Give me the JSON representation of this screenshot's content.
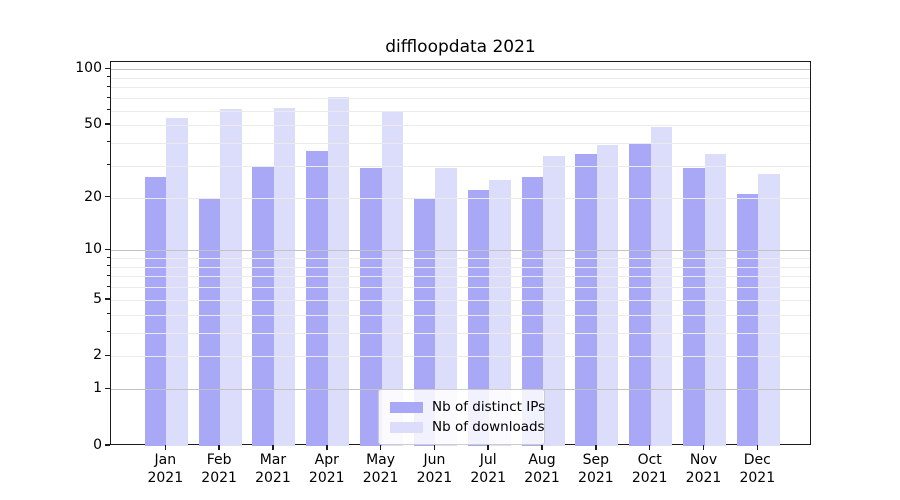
{
  "chart_data": {
    "type": "bar",
    "title": "diffloopdata 2021",
    "categories": [
      "Jan 2021",
      "Feb 2021",
      "Mar 2021",
      "Apr 2021",
      "May 2021",
      "Jun 2021",
      "Jul 2021",
      "Aug 2021",
      "Sep 2021",
      "Oct 2021",
      "Nov 2021",
      "Dec 2021"
    ],
    "series": [
      {
        "key": "distinct-ips",
        "name": "Nb of distinct IPs",
        "color": "#a8a8f6",
        "values": [
          26,
          20,
          30,
          36,
          29,
          20,
          22,
          26,
          35,
          40,
          29,
          21
        ]
      },
      {
        "key": "downloads",
        "name": "Nb of downloads",
        "color": "#dcdcfb",
        "values": [
          55,
          61,
          62,
          71,
          59,
          29,
          25,
          34,
          39,
          49,
          35,
          27
        ]
      }
    ],
    "xlabel": "",
    "ylabel": "",
    "y_scale": "log1p",
    "ylim": [
      0,
      109
    ],
    "y_tick_values": [
      0,
      1,
      2,
      5,
      10,
      20,
      50,
      100
    ],
    "y_tick_labels": [
      "0",
      "1",
      "2",
      "5",
      "10",
      "20",
      "50",
      "100"
    ],
    "major_grid_values": [
      1,
      10,
      100
    ],
    "minor_grid_values": [
      2,
      3,
      4,
      5,
      6,
      7,
      8,
      9,
      20,
      30,
      40,
      50,
      60,
      70,
      80,
      90
    ],
    "grid": "both",
    "legend_position": "lower center"
  },
  "colors": {
    "major_grid": "#c3c3c3",
    "minor_grid": "#ebebeb",
    "spine": "#1c1c1c",
    "text": "#000000",
    "legend_border": "#cccccc"
  }
}
